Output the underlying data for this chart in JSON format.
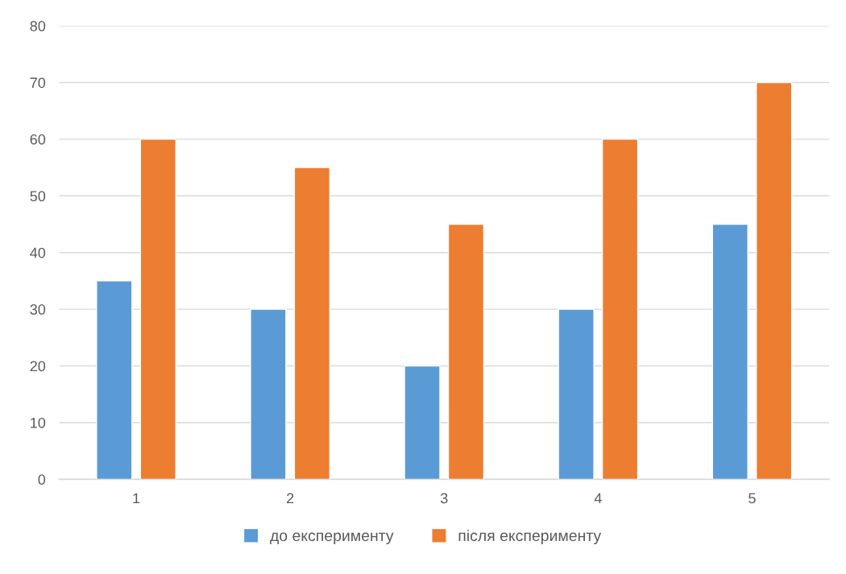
{
  "chart_data": {
    "type": "bar",
    "categories": [
      "1",
      "2",
      "3",
      "4",
      "5"
    ],
    "series": [
      {
        "name": "до експерименту",
        "color": "#5b9bd5",
        "values": [
          35,
          30,
          20,
          30,
          45
        ]
      },
      {
        "name": "після експерименту",
        "color": "#ed7d31",
        "values": [
          60,
          55,
          45,
          60,
          70
        ]
      }
    ],
    "ylim": [
      0,
      80
    ],
    "yticks": [
      0,
      10,
      20,
      30,
      40,
      50,
      60,
      70,
      80
    ],
    "grid": "y",
    "legend": "bottom"
  }
}
